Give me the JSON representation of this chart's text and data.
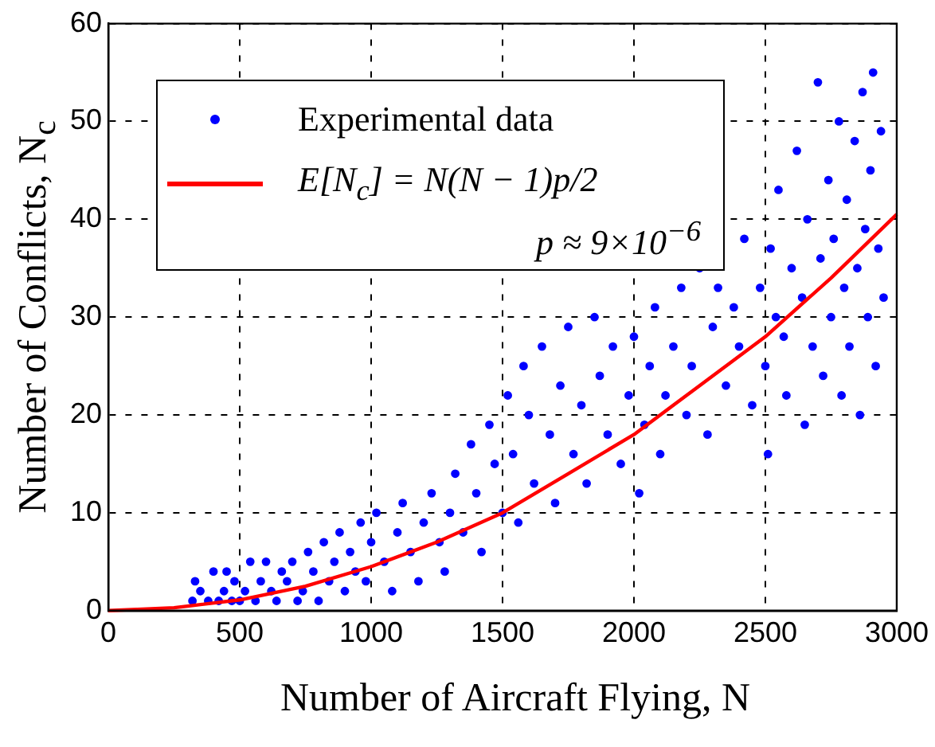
{
  "chart_data": {
    "type": "scatter",
    "xlabel": "Number of Aircraft Flying, N",
    "ylabel": "Number of Conflicts, N$_{c}$",
    "xlim": [
      0,
      3000
    ],
    "ylim": [
      0,
      60
    ],
    "xticks": [
      0,
      500,
      1000,
      1500,
      2000,
      2500,
      3000
    ],
    "yticks": [
      0,
      10,
      20,
      30,
      40,
      50,
      60
    ],
    "grid": true,
    "legend": "top left",
    "annotations": [
      "p ≈ 9×10$^{−6}$"
    ],
    "series": [
      {
        "name": "Experimental data",
        "color": "#0000ff",
        "marker": "circle",
        "x": [
          320,
          330,
          350,
          380,
          400,
          420,
          440,
          450,
          470,
          480,
          500,
          520,
          540,
          560,
          580,
          600,
          620,
          640,
          660,
          680,
          700,
          720,
          740,
          760,
          780,
          800,
          820,
          840,
          860,
          880,
          900,
          920,
          940,
          960,
          980,
          1000,
          1020,
          1050,
          1080,
          1100,
          1120,
          1150,
          1180,
          1200,
          1230,
          1260,
          1280,
          1300,
          1320,
          1350,
          1380,
          1400,
          1420,
          1450,
          1470,
          1500,
          1520,
          1540,
          1560,
          1580,
          1600,
          1620,
          1650,
          1680,
          1700,
          1720,
          1750,
          1770,
          1800,
          1820,
          1850,
          1870,
          1900,
          1920,
          1950,
          1980,
          2000,
          2020,
          2040,
          2060,
          2080,
          2100,
          2120,
          2150,
          2180,
          2200,
          2220,
          2250,
          2280,
          2300,
          2320,
          2350,
          2380,
          2400,
          2420,
          2450,
          2480,
          2500,
          2510,
          2520,
          2540,
          2550,
          2570,
          2580,
          2600,
          2620,
          2640,
          2650,
          2660,
          2680,
          2700,
          2710,
          2720,
          2740,
          2750,
          2760,
          2780,
          2790,
          2800,
          2810,
          2820,
          2840,
          2850,
          2860,
          2870,
          2880,
          2890,
          2900,
          2910,
          2920,
          2930,
          2940,
          2950
        ],
        "values": [
          1,
          3,
          2,
          1,
          4,
          1,
          2,
          4,
          1,
          3,
          1,
          2,
          5,
          1,
          3,
          5,
          2,
          1,
          4,
          3,
          5,
          1,
          2,
          6,
          4,
          1,
          7,
          3,
          5,
          8,
          2,
          6,
          4,
          9,
          3,
          7,
          10,
          5,
          2,
          8,
          11,
          6,
          3,
          9,
          12,
          7,
          4,
          10,
          14,
          8,
          17,
          12,
          6,
          19,
          15,
          10,
          22,
          16,
          9,
          25,
          20,
          13,
          27,
          18,
          11,
          23,
          29,
          16,
          21,
          13,
          30,
          24,
          18,
          27,
          15,
          22,
          28,
          12,
          19,
          25,
          31,
          16,
          22,
          27,
          33,
          20,
          25,
          35,
          18,
          29,
          33,
          23,
          31,
          27,
          38,
          21,
          33,
          25,
          16,
          37,
          30,
          43,
          28,
          22,
          35,
          47,
          32,
          19,
          40,
          27,
          54,
          36,
          24,
          44,
          30,
          38,
          50,
          22,
          33,
          42,
          27,
          48,
          35,
          20,
          53,
          39,
          30,
          45,
          55,
          25,
          37,
          49,
          32
        ]
      },
      {
        "name": "E[N$_{c}$] = N(N − 1)p/2",
        "type": "line",
        "color": "#ff0000",
        "marker": "none",
        "line_style": "solid",
        "x": [
          0,
          250,
          500,
          750,
          1000,
          1250,
          1500,
          1750,
          2000,
          2250,
          2500,
          2750,
          3000
        ],
        "values": [
          0,
          0.3,
          1.1,
          2.5,
          4.5,
          7,
          10,
          14,
          18,
          23,
          28,
          34,
          40.5
        ]
      }
    ]
  }
}
